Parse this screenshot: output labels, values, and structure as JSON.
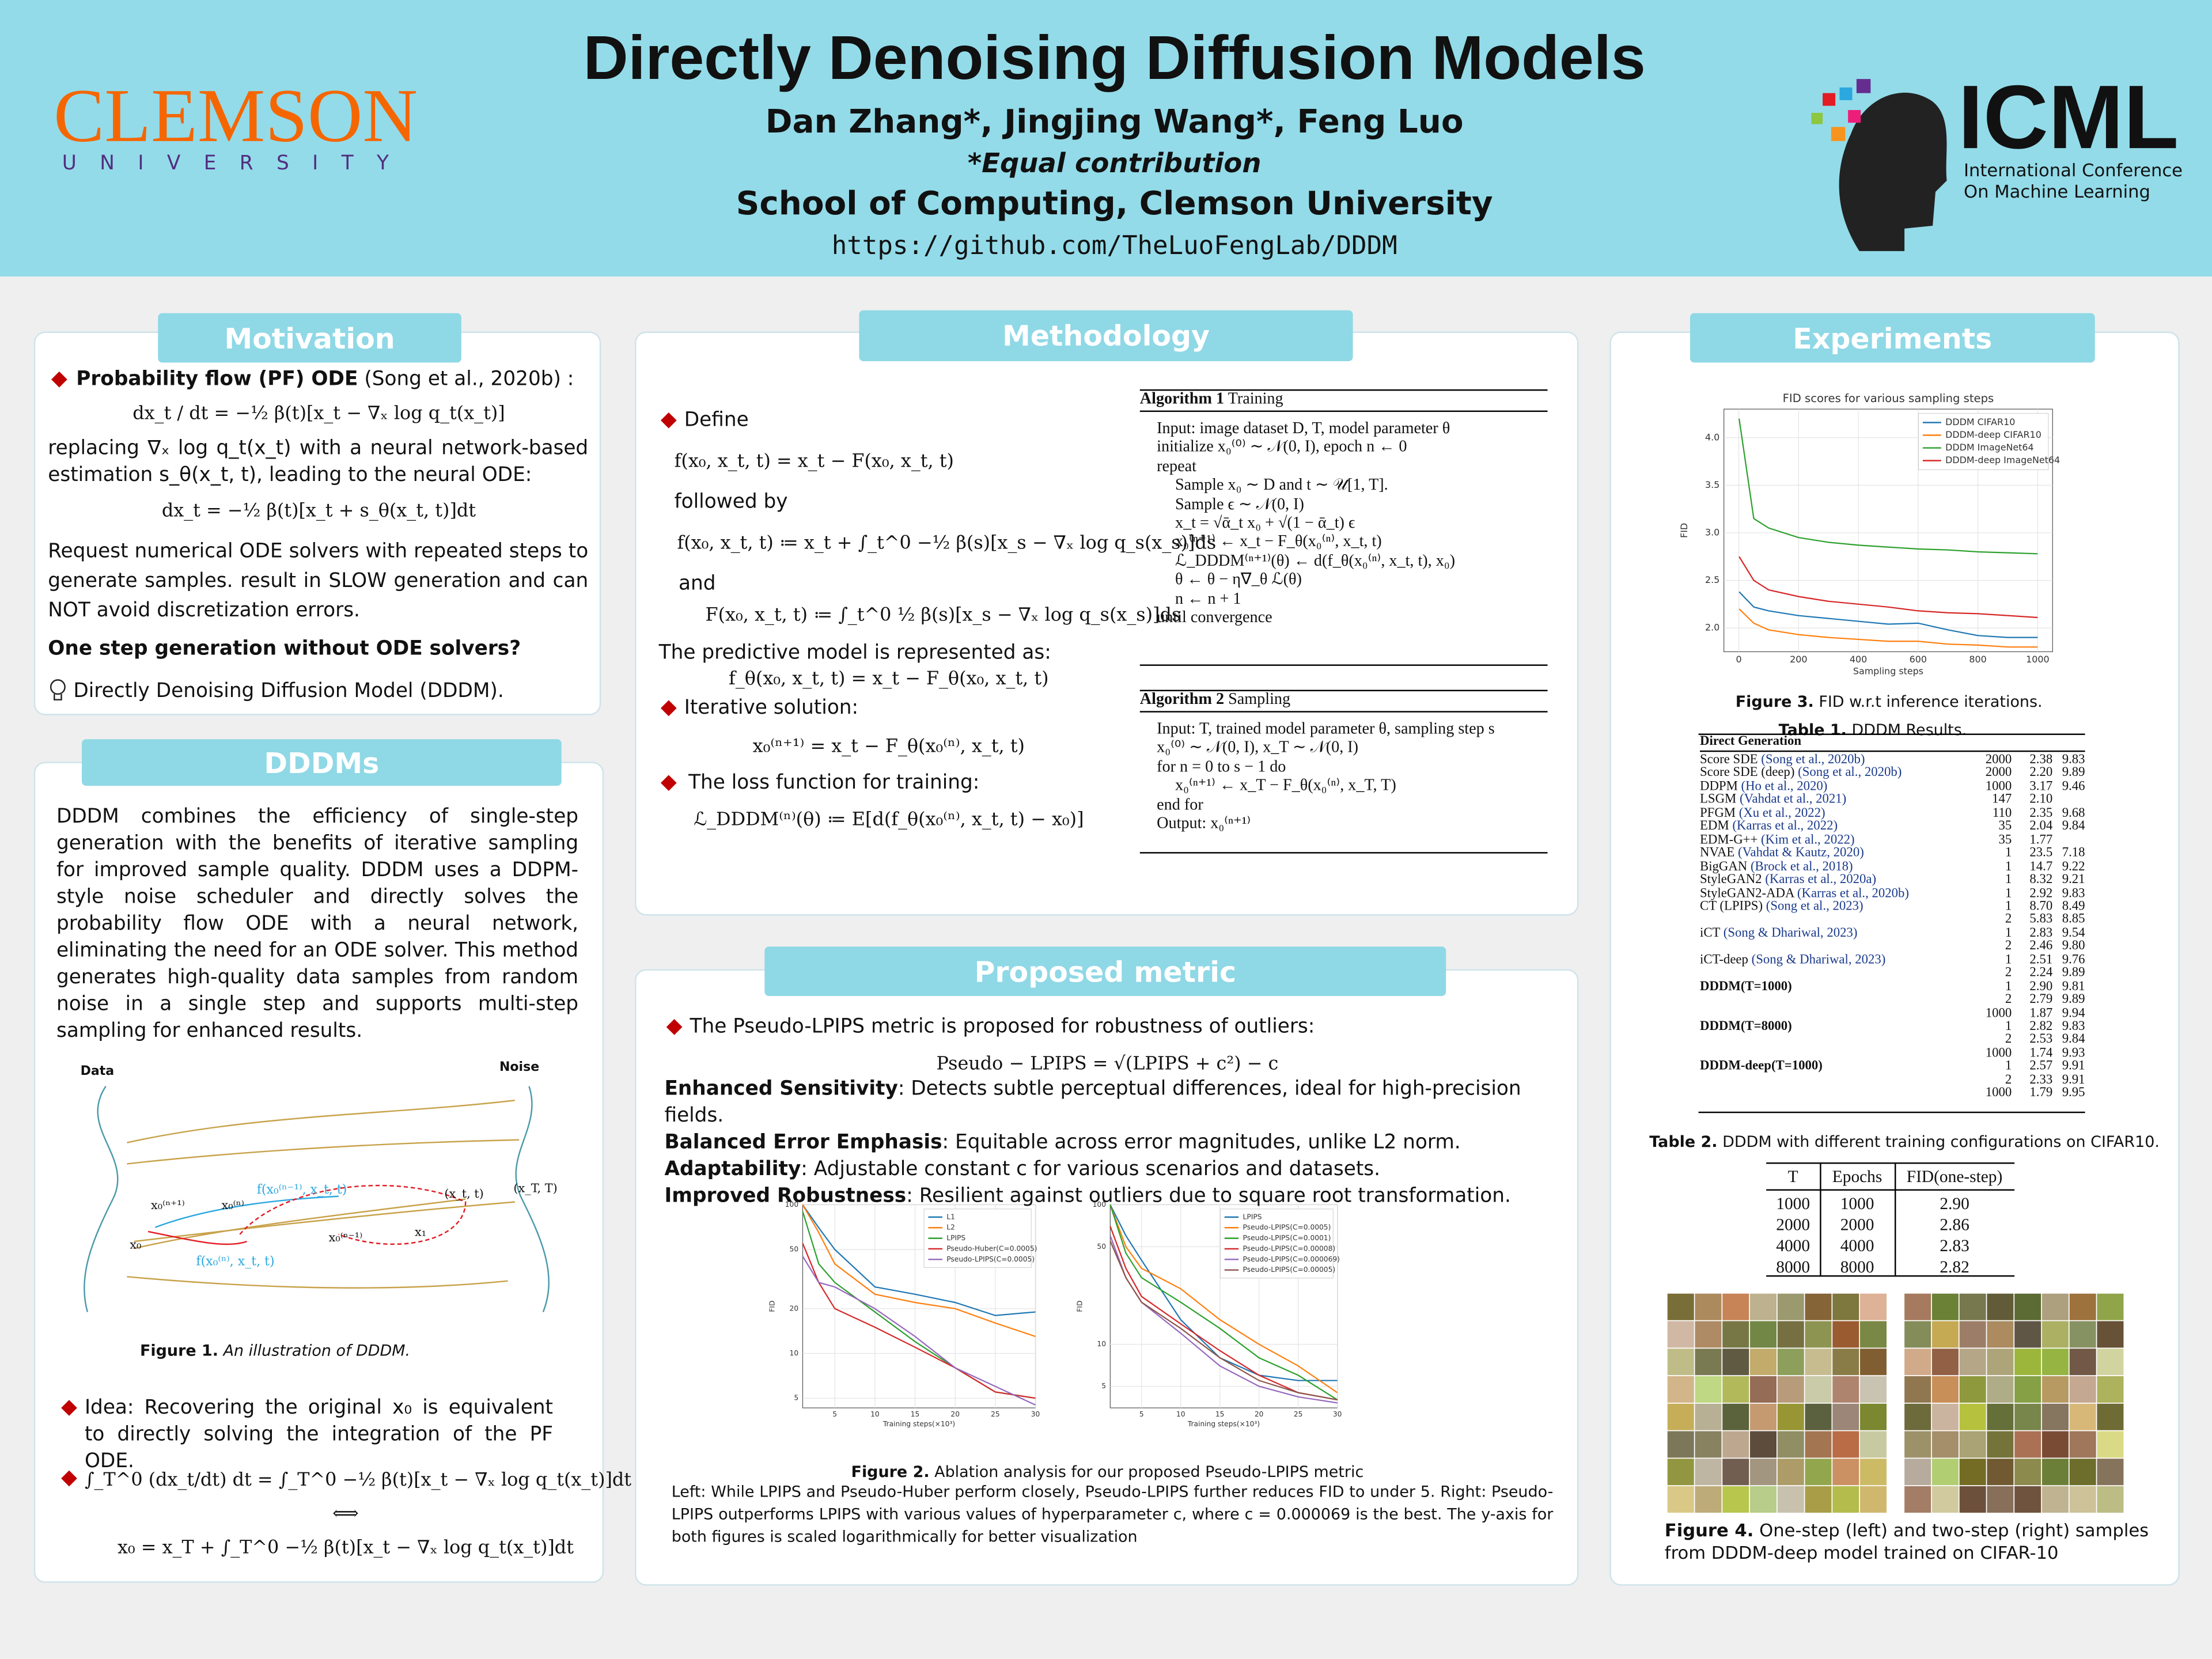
{
  "header": {
    "title": "Directly Denoising Diffusion Models",
    "authors": "Dan Zhang*, Jingjing Wang*, Feng Luo",
    "note": "*Equal contribution",
    "affiliation": "School of Computing, Clemson University",
    "url": "https://github.com/TheLuoFengLab/DDDM",
    "logo_left": "CLEMSON",
    "logo_left_sub": "UNIVERSITY",
    "logo_right": "ICML",
    "logo_right_sub1": "International Conference",
    "logo_right_sub2": "On Machine Learning"
  },
  "motivation": {
    "heading": "Motivation",
    "pf_label": "Probability flow (PF) ODE",
    "pf_cite": "(Song et al., 2020b) :",
    "eq1": "dx_t / dt = −½ β(t)[x_t − ∇ₓ log q_t(x_t)]",
    "p1": "replacing ∇ₓ log q_t(x_t) with a neural network-based estimation s_θ(x_t, t), leading to the neural ODE:",
    "eq2": "dx_t = −½ β(t)[x_t + s_θ(x_t, t)]dt",
    "p2": "Request numerical ODE solvers with repeated steps to generate samples. result in SLOW generation and can NOT avoid discretization errors.",
    "question": "One step generation without ODE solvers?",
    "answer": "Directly Denoising Diffusion Model (DDDM)."
  },
  "dddms": {
    "heading": "DDDMs",
    "paragraph": "DDDM combines the efficiency of single-step generation with the benefits of iterative sampling for improved sample quality. DDDM uses a DDPM-style noise scheduler and directly solves the probability flow ODE with a neural network, eliminating the need for an ODE solver. This method generates high-quality data samples from random noise in a single step and supports multi-step sampling for enhanced results.",
    "figure_labels": {
      "data": "Data",
      "noise": "Noise",
      "x0_n1": "x₀⁽ⁿ⁺¹⁾",
      "x0_n": "x₀⁽ⁿ⁾",
      "f_prev": "f(x₀⁽ⁿ⁻¹⁾, x_t, t)",
      "xt": "(x_t, t)",
      "xT": "(x_T, T)",
      "x0_nm1": "x₀⁽ⁿ⁻¹⁾",
      "x1": "x₁",
      "x0": "x₀",
      "f_cur": "f(x₀⁽ⁿ⁾, x_t, t)"
    },
    "caption_label": "Figure 1.",
    "caption": "An illustration of DDDM.",
    "idea": "Idea: Recovering the original x₀ is equivalent to directly solving the integration of the PF ODE.",
    "eq3": "∫_T^0 (dx_t/dt) dt = ∫_T^0 −½ β(t)[x_t − ∇ₓ log q_t(x_t)]dt",
    "equiv": "⟺",
    "eq4": "x₀ = x_T + ∫_T^0 −½ β(t)[x_t − ∇ₓ log q_t(x_t)]dt"
  },
  "methodology": {
    "heading": "Methodology",
    "define": "Define",
    "eq1": "f(x₀, x_t, t) = x_t − F(x₀, x_t, t)",
    "followed": "followed by",
    "eq2": "f(x₀, x_t, t) ≔ x_t + ∫_t^0 −½ β(s)[x_s − ∇ₓ log q_s(x_s)]ds",
    "and": "and",
    "eq3": "F(x₀, x_t, t) ≔ ∫_t^0 ½ β(s)[x_s − ∇ₓ log q_s(x_s)]ds",
    "predictive": "The predictive model is represented as:",
    "eq4": "f_θ(x₀, x_t, t) = x_t − F_θ(x₀, x_t, t)",
    "iterative": "Iterative solution:",
    "eq5": "x₀⁽ⁿ⁺¹⁾ = x_t − F_θ(x₀⁽ⁿ⁾, x_t, t)",
    "loss": "The loss function for training:",
    "eq6": "ℒ_DDDM⁽ⁿ⁾(θ) ≔ E[d(f_θ(x₀⁽ⁿ⁾, x_t, t) − x₀)]",
    "alg1": {
      "label": "Algorithm 1",
      "title": "Training",
      "before": [
        "Input: image dataset D, T, model parameter θ",
        "initialize x₀⁽⁰⁾ ∼ 𝒩(0, I), epoch n ← 0",
        "repeat"
      ],
      "body": [
        "Sample x₀ ∼ D and t ∼ 𝒰[1, T].",
        "Sample ϵ ∼ 𝒩(0, I)",
        "x_t = √ᾱ_t x₀ + √(1 − ᾱ_t) ϵ",
        "x₀⁽ⁿ⁺¹⁾ ← x_t − F_θ(x₀⁽ⁿ⁾, x_t, t)",
        "ℒ_DDDM⁽ⁿ⁺¹⁾(θ) ← d(f_θ(x₀⁽ⁿ⁾, x_t, t), x₀)",
        "θ ← θ − η∇_θ ℒ(θ)",
        "n ← n + 1"
      ],
      "after": [
        "until convergence"
      ]
    },
    "alg2": {
      "label": "Algorithm 2",
      "title": "Sampling",
      "before": [
        "Input: T, trained model parameter θ, sampling step s",
        "x₀⁽⁰⁾ ∼ 𝒩(0, I), x_T ∼ 𝒩(0, I)",
        "for n = 0 to s − 1 do"
      ],
      "body": [
        "x₀⁽ⁿ⁺¹⁾ ← x_T − F_θ(x₀⁽ⁿ⁾, x_T, T)"
      ],
      "after": [
        "end for",
        "Output: x₀⁽ⁿ⁺¹⁾"
      ]
    }
  },
  "proposed_metric": {
    "heading": "Proposed metric",
    "intro": "The Pseudo-LPIPS metric is proposed for robustness of outliers:",
    "eq": "Pseudo − LPIPS = √(LPIPS + c²) − c",
    "items": [
      {
        "term": "Enhanced Sensitivity",
        "text": ": Detects subtle perceptual differences, ideal for high-precision fields."
      },
      {
        "term": "Balanced Error Emphasis",
        "text": ": Equitable across error magnitudes, unlike L2 norm."
      },
      {
        "term": "Adaptability",
        "text": ": Adjustable constant c for various scenarios and datasets."
      },
      {
        "term": "Improved Robustness",
        "text": ": Resilient against outliers due to square root transformation."
      }
    ],
    "caption_label": "Figure 2.",
    "caption": "Ablation analysis for our proposed Pseudo-LPIPS metric",
    "description": "Left: While LPIPS and Pseudo-Huber perform closely, Pseudo-LPIPS further reduces FID to under 5. Right: Pseudo-LPIPS outperforms LPIPS with various values of hyperparameter c, where c = 0.000069 is the best. The y-axis for both figures is scaled logarithmically for better visualization"
  },
  "charts": {
    "fig2_left": {
      "type": "line",
      "log_y": true,
      "legend": "upper right",
      "xlabel": "Training steps(×10³)",
      "ylabel": "FID",
      "x": [
        1,
        3,
        5,
        10,
        15,
        20,
        25,
        30
      ],
      "xlim": [
        1,
        30
      ],
      "xticks": [
        5,
        10,
        15,
        20,
        25,
        30
      ],
      "ylim": [
        4.3,
        100
      ],
      "yticks": [
        5,
        10,
        20,
        50,
        100
      ],
      "series": [
        {
          "name": "L1",
          "color": "#1f77b4",
          "values": [
            100,
            70,
            50,
            28,
            25,
            22,
            18,
            19
          ]
        },
        {
          "name": "L2",
          "color": "#ff7f0e",
          "values": [
            100,
            65,
            40,
            25,
            22,
            20,
            16,
            13
          ]
        },
        {
          "name": "LPIPS",
          "color": "#2ca02c",
          "values": [
            90,
            40,
            30,
            19,
            12,
            8,
            5.5,
            5
          ]
        },
        {
          "name": "Pseudo-Huber(C=0.0005)",
          "color": "#d62728",
          "values": [
            55,
            30,
            20,
            15,
            11,
            8,
            5.5,
            5
          ]
        },
        {
          "name": "Pseudo-LPIPS(C=0.0005)",
          "color": "#9467bd",
          "values": [
            45,
            30,
            28,
            20,
            13,
            8,
            6,
            4.5
          ]
        }
      ]
    },
    "fig2_right": {
      "type": "line",
      "log_y": true,
      "legend": "upper right",
      "xlabel": "Training steps(×10³)",
      "ylabel": "FID",
      "x": [
        1,
        3,
        5,
        10,
        15,
        20,
        25,
        30
      ],
      "xlim": [
        1,
        30
      ],
      "xticks": [
        5,
        10,
        15,
        20,
        25,
        30
      ],
      "ylim": [
        3.5,
        100
      ],
      "yticks": [
        5,
        10,
        50,
        100
      ],
      "series": [
        {
          "name": "LPIPS",
          "color": "#1f77b4",
          "values": [
            100,
            60,
            40,
            15,
            8,
            6,
            5.5,
            5.5
          ]
        },
        {
          "name": "Pseudo-LPIPS(C=0.0005)",
          "color": "#ff7f0e",
          "values": [
            100,
            50,
            35,
            25,
            15,
            10,
            7,
            4.5
          ]
        },
        {
          "name": "Pseudo-LPIPS(C=0.0001)",
          "color": "#2ca02c",
          "values": [
            100,
            45,
            30,
            20,
            13,
            8,
            6,
            4
          ]
        },
        {
          "name": "Pseudo-LPIPS(C=0.00008)",
          "color": "#d62728",
          "values": [
            70,
            35,
            22,
            14,
            9,
            6,
            4.5,
            4
          ]
        },
        {
          "name": "Pseudo-LPIPS(C=0.000069)",
          "color": "#9467bd",
          "values": [
            60,
            30,
            20,
            12,
            7,
            5,
            4.2,
            3.8
          ]
        },
        {
          "name": "Pseudo-LPIPS(C=0.00005)",
          "color": "#8c564b",
          "values": [
            55,
            30,
            20,
            13,
            8,
            5.5,
            4.5,
            4
          ]
        }
      ]
    },
    "fig3": {
      "type": "line",
      "log_y": false,
      "legend": "upper right",
      "title": "FID scores for various sampling steps",
      "xlabel": "Sampling steps",
      "ylabel": "FID",
      "x": [
        1,
        50,
        100,
        200,
        300,
        400,
        500,
        600,
        700,
        800,
        900,
        1000
      ],
      "xlim": [
        -50,
        1050
      ],
      "xticks": [
        0,
        200,
        400,
        600,
        800,
        1000
      ],
      "ylim": [
        1.75,
        4.3
      ],
      "yticks": [
        {
          "value": 2,
          "label": "2.0"
        },
        2.5,
        {
          "value": 3,
          "label": "3.0"
        },
        3.5,
        {
          "value": 4,
          "label": "4.0"
        }
      ],
      "series": [
        {
          "name": "DDDM CIFAR10",
          "color": "#1f77b4",
          "values": [
            2.38,
            2.22,
            2.18,
            2.13,
            2.1,
            2.07,
            2.04,
            2.05,
            1.98,
            1.92,
            1.9,
            1.9
          ]
        },
        {
          "name": "DDDM-deep CIFAR10",
          "color": "#ff7f0e",
          "values": [
            2.2,
            2.05,
            1.98,
            1.93,
            1.9,
            1.88,
            1.86,
            1.86,
            1.83,
            1.82,
            1.8,
            1.8
          ]
        },
        {
          "name": "DDDM ImageNet64",
          "color": "#2ca02c",
          "values": [
            4.2,
            3.15,
            3.05,
            2.95,
            2.9,
            2.87,
            2.85,
            2.83,
            2.82,
            2.8,
            2.79,
            2.78
          ]
        },
        {
          "name": "DDDM-deep ImageNet64",
          "color": "#d62728",
          "values": [
            2.75,
            2.5,
            2.4,
            2.33,
            2.28,
            2.25,
            2.22,
            2.18,
            2.16,
            2.15,
            2.13,
            2.11
          ]
        }
      ]
    }
  },
  "experiments": {
    "heading": "Experiments",
    "fig3_label": "Figure 3.",
    "fig3_caption": "FID w.r.t inference iterations.",
    "table1_label": "Table 1.",
    "table1_caption": "DDDM Results.",
    "table1_group": "Direct Generation",
    "table1_rows": [
      {
        "method": "Score SDE",
        "cite": "(Song et al., 2020b)",
        "nfe": "2000",
        "fid": "2.38",
        "is": "9.83"
      },
      {
        "method": "Score SDE (deep)",
        "cite": "(Song et al., 2020b)",
        "nfe": "2000",
        "fid": "2.20",
        "is": "9.89"
      },
      {
        "method": "DDPM",
        "cite": "(Ho et al., 2020)",
        "nfe": "1000",
        "fid": "3.17",
        "is": "9.46"
      },
      {
        "method": "LSGM",
        "cite": "(Vahdat et al., 2021)",
        "nfe": "147",
        "fid": "2.10",
        "is": null
      },
      {
        "method": "PFGM",
        "cite": "(Xu et al., 2022)",
        "nfe": "110",
        "fid": "2.35",
        "is": "9.68"
      },
      {
        "method": "EDM",
        "cite": "(Karras et al., 2022)",
        "nfe": "35",
        "fid": "2.04",
        "is": "9.84"
      },
      {
        "method": "EDM-G++",
        "cite": "(Kim et al., 2022)",
        "nfe": "35",
        "fid": "1.77",
        "is": null
      },
      {
        "method": "NVAE",
        "cite": "(Vahdat & Kautz, 2020)",
        "nfe": "1",
        "fid": "23.5",
        "is": "7.18"
      },
      {
        "method": "BigGAN",
        "cite": "(Brock et al., 2018)",
        "nfe": "1",
        "fid": "14.7",
        "is": "9.22"
      },
      {
        "method": "StyleGAN2",
        "cite": "(Karras et al., 2020a)",
        "nfe": "1",
        "fid": "8.32",
        "is": "9.21"
      },
      {
        "method": "StyleGAN2-ADA",
        "cite": "(Karras et al., 2020b)",
        "nfe": "1",
        "fid": "2.92",
        "is": "9.83"
      },
      {
        "method": "CT (LPIPS)",
        "cite": "(Song et al., 2023)",
        "nfe": "1",
        "fid": "8.70",
        "is": "8.49"
      },
      {
        "method": null,
        "cite": null,
        "nfe": "2",
        "fid": "5.83",
        "is": "8.85"
      },
      {
        "method": "iCT",
        "cite": "(Song & Dhariwal, 2023)",
        "nfe": "1",
        "fid": "2.83",
        "is": "9.54"
      },
      {
        "method": null,
        "cite": null,
        "nfe": "2",
        "fid": "2.46",
        "is": "9.80"
      },
      {
        "method": "iCT-deep",
        "cite": "(Song & Dhariwal, 2023)",
        "nfe": "1",
        "fid": "2.51",
        "is": "9.76"
      },
      {
        "method": null,
        "cite": null,
        "nfe": "2",
        "fid": "2.24",
        "is": "9.89"
      },
      {
        "method": "DDDM(T=1000)",
        "cite": null,
        "nfe": "1",
        "fid": "2.90",
        "is": "9.81"
      },
      {
        "method": null,
        "cite": null,
        "nfe": "2",
        "fid": "2.79",
        "is": "9.89"
      },
      {
        "method": null,
        "cite": null,
        "nfe": "1000",
        "fid": "1.87",
        "is": "9.94"
      },
      {
        "method": "DDDM(T=8000)",
        "cite": null,
        "nfe": "1",
        "fid": "2.82",
        "is": "9.83"
      },
      {
        "method": null,
        "cite": null,
        "nfe": "2",
        "fid": "2.53",
        "is": "9.84"
      },
      {
        "method": null,
        "cite": null,
        "nfe": "1000",
        "fid": "1.74",
        "is": "9.93"
      },
      {
        "method": "DDDM-deep(T=1000)",
        "cite": null,
        "nfe": "1",
        "fid": "2.57",
        "is": "9.91"
      },
      {
        "method": null,
        "cite": null,
        "nfe": "2",
        "fid": "2.33",
        "is": "9.91"
      },
      {
        "method": null,
        "cite": null,
        "nfe": "1000",
        "fid": "1.79",
        "is": "9.95"
      }
    ],
    "table2_label": "Table 2.",
    "table2_caption": "DDDM with different training configurations on CIFAR10.",
    "table2_header": [
      "T",
      "Epochs",
      "FID(one-step)"
    ],
    "table2_rows": [
      [
        "1000",
        "1000",
        "2.90"
      ],
      [
        "2000",
        "2000",
        "2.86"
      ],
      [
        "4000",
        "4000",
        "2.83"
      ],
      [
        "8000",
        "8000",
        "2.82"
      ]
    ],
    "fig4_label": "Figure 4.",
    "fig4_caption": "One-step (left) and two-step (right) samples from DDDM-deep model trained on CIFAR-10"
  }
}
